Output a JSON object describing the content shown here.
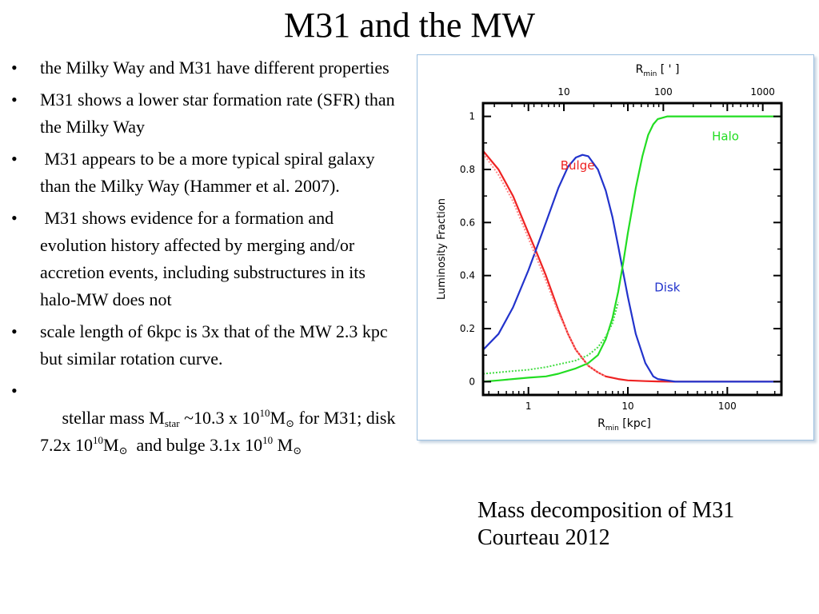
{
  "slide": {
    "title": "M31 and the MW",
    "bullet_symbol": "•",
    "bullets": {
      "b1": "the Milky Way and M31 have different properties",
      "b2": "M31 shows a lower star formation rate (SFR) than the Milky Way",
      "b3": " M31 appears to be a more typical spiral galaxy than the Milky Way (Hammer et al. 2007).",
      "b4": " M31 shows evidence for a formation and evolution history affected by merging and/or accretion events, including substructures in its halo-MW does not",
      "b5": "scale length of 6kpc is 3x that of the MW 2.3 kpc but similar rotation curve.",
      "b6": {
        "p1": " stellar mass M",
        "sub_star": "star",
        "p2": " ~10.3 x 10",
        "exp1": "10",
        "p3": "M",
        "sun1": "⊙",
        "p4": " for M31; disk 7.2x 10",
        "exp2": "10",
        "p5": "M",
        "sun2": "⊙",
        "p6": "  and bulge 3.1x 10",
        "exp3": "10",
        "p7": " M",
        "sun3": "⊙"
      }
    },
    "caption": {
      "line1": "Mass decomposition of M31",
      "line2": "Courteau 2012"
    }
  },
  "chart_data": {
    "type": "line",
    "title": "",
    "xlabel": "R",
    "xlabel_sub": "min",
    "xlabel_unit": "[kpc]",
    "ylabel": "Luminosity Fraction",
    "top_axis_label": "R",
    "top_axis_sub": "min",
    "top_axis_unit": "[ ' ]",
    "xscale": "log",
    "xlim": [
      0.35,
      350
    ],
    "ylim": [
      -0.05,
      1.05
    ],
    "x_ticks": [
      1,
      10,
      100
    ],
    "x_tick_labels": [
      "1",
      "10",
      "100"
    ],
    "y_ticks": [
      0,
      0.2,
      0.4,
      0.6,
      0.8,
      1
    ],
    "y_tick_labels": [
      "0",
      "0.2",
      "0.4",
      "0.6",
      "0.8",
      "1"
    ],
    "top_ticks": [
      10,
      100,
      1000
    ],
    "top_tick_labels": [
      "10",
      "100",
      "1000"
    ],
    "top_axis_kpc_per_unit": 0.2273,
    "grid": false,
    "legend": "inline labels",
    "series": [
      {
        "name": "Bulge",
        "color": "#ee2222",
        "x": [
          0.35,
          0.5,
          0.7,
          1.0,
          1.2,
          1.5,
          2.0,
          2.5,
          3.0,
          4.0,
          5.0,
          6.0,
          8.0,
          10,
          15,
          20,
          30,
          50,
          100,
          350
        ],
        "y": [
          0.87,
          0.8,
          0.7,
          0.56,
          0.49,
          0.4,
          0.27,
          0.18,
          0.12,
          0.06,
          0.035,
          0.02,
          0.01,
          0.005,
          0.002,
          0.001,
          0.0,
          0.0,
          0.0,
          0.0
        ]
      },
      {
        "name": "Disk",
        "color": "#2233cc",
        "x": [
          0.35,
          0.5,
          0.7,
          1.0,
          1.2,
          1.5,
          2.0,
          2.5,
          3.0,
          3.5,
          4.0,
          5.0,
          6.0,
          7.0,
          8.0,
          9.0,
          10,
          12,
          15,
          18,
          20,
          30,
          50,
          100,
          350
        ],
        "y": [
          0.12,
          0.18,
          0.28,
          0.42,
          0.5,
          0.6,
          0.73,
          0.81,
          0.845,
          0.855,
          0.85,
          0.8,
          0.72,
          0.62,
          0.51,
          0.41,
          0.32,
          0.18,
          0.07,
          0.02,
          0.01,
          0.0,
          0.0,
          0.0,
          0.0
        ]
      },
      {
        "name": "Halo",
        "color": "#22dd22",
        "x": [
          0.35,
          0.5,
          0.7,
          1.0,
          1.5,
          2.0,
          3.0,
          4.0,
          5.0,
          6.0,
          7.0,
          8.0,
          9.0,
          10,
          12,
          14,
          16,
          18,
          20,
          25,
          30,
          50,
          100,
          350
        ],
        "y": [
          0.0,
          0.005,
          0.01,
          0.015,
          0.02,
          0.03,
          0.05,
          0.07,
          0.1,
          0.16,
          0.24,
          0.34,
          0.45,
          0.56,
          0.73,
          0.85,
          0.93,
          0.97,
          0.99,
          1.0,
          1.0,
          1.0,
          1.0,
          1.0
        ]
      },
      {
        "name": "",
        "color": "#44dd44",
        "style": "dotted",
        "x": [
          0.35,
          0.5,
          0.7,
          1.0,
          1.5,
          2.0,
          3.0,
          4.0,
          5.0,
          6.0,
          7.0,
          8.0
        ],
        "y": [
          0.03,
          0.035,
          0.04,
          0.045,
          0.055,
          0.065,
          0.08,
          0.1,
          0.13,
          0.17,
          0.22,
          0.3
        ]
      },
      {
        "name": "",
        "color": "#ff8888",
        "style": "dotted",
        "x": [
          0.35,
          0.5,
          0.7,
          1.0,
          1.5,
          2.0,
          3.0,
          4.0,
          5.0,
          6.0
        ],
        "y": [
          0.86,
          0.78,
          0.68,
          0.54,
          0.38,
          0.26,
          0.12,
          0.06,
          0.035,
          0.02
        ]
      }
    ]
  }
}
